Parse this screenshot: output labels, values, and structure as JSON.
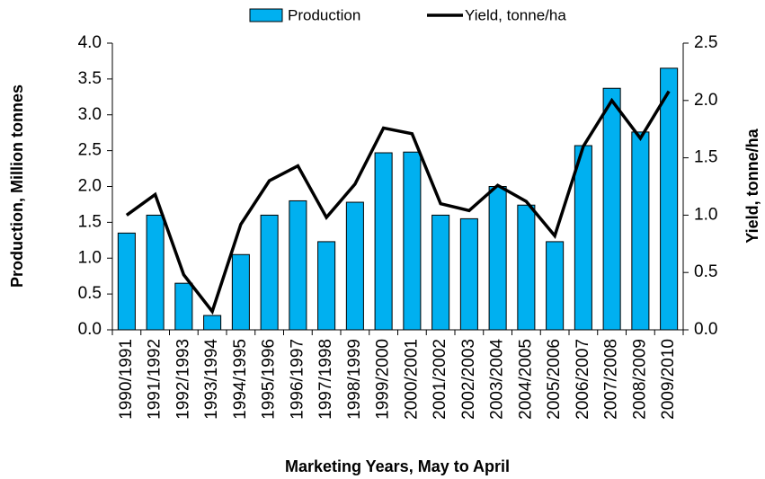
{
  "chart_data": {
    "type": "bar",
    "x_label": "Marketing Years, May to April",
    "y_label": "Production, Million tonnes",
    "y2_label": "Yield, tonne/ha",
    "legend": "top",
    "categories": [
      "1990/1991",
      "1991/1992",
      "1992/1993",
      "1993/1994",
      "1994/1995",
      "1995/1996",
      "1996/1997",
      "1997/1998",
      "1998/1999",
      "1999/2000",
      "2000/2001",
      "2001/2002",
      "2002/2003",
      "2003/2004",
      "2004/2005",
      "2005/2006",
      "2006/2007",
      "2007/2008",
      "2008/2009",
      "2009/2010"
    ],
    "series": [
      {
        "name": "Production",
        "type": "bar",
        "color": "#00b0f0",
        "values": [
          1.35,
          1.6,
          0.65,
          0.2,
          1.05,
          1.6,
          1.8,
          1.23,
          1.78,
          2.47,
          2.48,
          1.6,
          1.55,
          2.0,
          1.74,
          1.23,
          2.57,
          3.37,
          2.76,
          3.65
        ]
      },
      {
        "name": "Yield, tonne/ha",
        "type": "line",
        "axis": "y2",
        "color": "#000000",
        "values": [
          1.0,
          1.18,
          0.48,
          0.16,
          0.92,
          1.3,
          1.43,
          0.98,
          1.27,
          1.76,
          1.71,
          1.1,
          1.04,
          1.26,
          1.12,
          0.82,
          1.6,
          2.0,
          1.67,
          2.08
        ]
      }
    ],
    "ylim": [
      0,
      4
    ],
    "yticks": [
      {
        "value": 0,
        "label": "0.0"
      },
      {
        "value": 0.5,
        "label": "0.5"
      },
      {
        "value": 1,
        "label": "1.0"
      },
      {
        "value": 1.5,
        "label": "1.5"
      },
      {
        "value": 2,
        "label": "2.0"
      },
      {
        "value": 2.5,
        "label": "2.5"
      },
      {
        "value": 3,
        "label": "3.0"
      },
      {
        "value": 3.5,
        "label": "3.5"
      },
      {
        "value": 4,
        "label": "4.0"
      }
    ],
    "y2lim": [
      0,
      2.5
    ],
    "y2ticks": [
      {
        "value": 0,
        "label": "0.0"
      },
      {
        "value": 0.5,
        "label": "0.5"
      },
      {
        "value": 1,
        "label": "1.0"
      },
      {
        "value": 1.5,
        "label": "1.5"
      },
      {
        "value": 2,
        "label": "2.0"
      },
      {
        "value": 2.5,
        "label": "2.5"
      }
    ]
  }
}
